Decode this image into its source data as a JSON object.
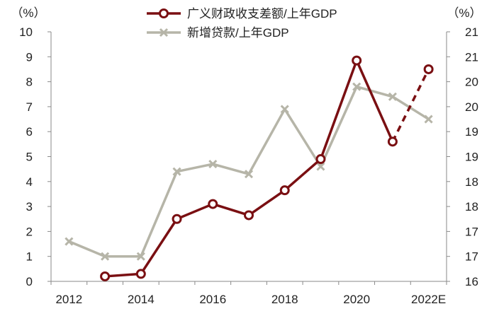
{
  "chart_data": {
    "type": "line",
    "categories": [
      "2012",
      "2013",
      "2014",
      "2015",
      "2016",
      "2017",
      "2018",
      "2019",
      "2020",
      "2021",
      "2022E"
    ],
    "x_tick_labels": [
      "2012",
      "2014",
      "2016",
      "2018",
      "2020",
      "2022E"
    ],
    "left_axis": {
      "unit_label": "（%）",
      "ylim": [
        0,
        10
      ],
      "ticks": [
        "0",
        "1",
        "2",
        "3",
        "4",
        "5",
        "6",
        "7",
        "8",
        "9",
        "10"
      ]
    },
    "right_axis": {
      "unit_label": "（%）",
      "ylim": [
        16,
        21
      ],
      "ticks": [
        "16",
        "17",
        "17",
        "18",
        "18",
        "19",
        "19",
        "20",
        "20",
        "21",
        "21"
      ]
    },
    "series": [
      {
        "name": "广义财政收支差额/上年GDP",
        "axis": "left",
        "color": "#7a0f12",
        "marker": "circle",
        "values": [
          null,
          0.2,
          0.3,
          2.5,
          3.1,
          2.65,
          3.65,
          4.9,
          8.85,
          5.6,
          8.5
        ],
        "dashed_last_segment": true
      },
      {
        "name": "新增贷款/上年GDP",
        "axis": "right",
        "color": "#b6b5a8",
        "marker": "x",
        "values": [
          16.8,
          16.5,
          16.5,
          18.2,
          18.35,
          18.15,
          19.45,
          18.3,
          19.9,
          19.7,
          19.25
        ]
      }
    ],
    "legend": "top-center",
    "grid": false
  }
}
